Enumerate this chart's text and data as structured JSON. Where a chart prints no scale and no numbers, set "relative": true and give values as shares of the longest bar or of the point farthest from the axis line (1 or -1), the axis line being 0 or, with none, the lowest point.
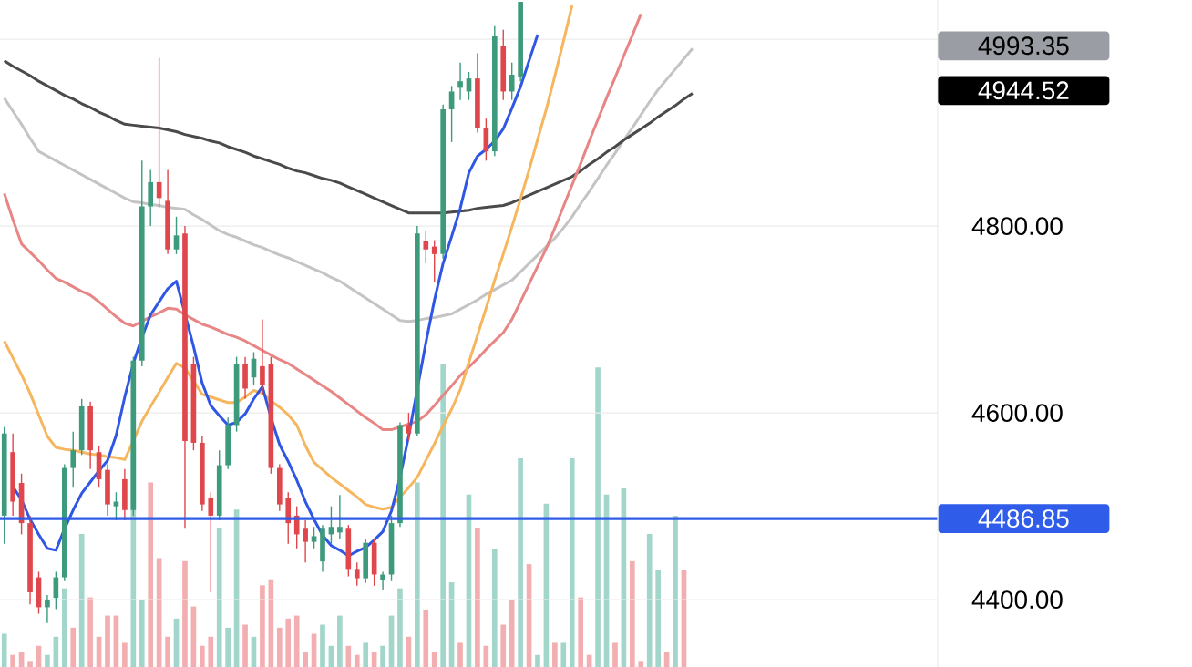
{
  "chart_data": [
    {
      "type": "candlestick",
      "categories": [
        null,
        null,
        null,
        null,
        null,
        null,
        null,
        null,
        null,
        null,
        null,
        null,
        null,
        null,
        null,
        null,
        null,
        null,
        null,
        null,
        null,
        null,
        null,
        null,
        null,
        null,
        null,
        null,
        null,
        null,
        null,
        null,
        null,
        null,
        null,
        null,
        null,
        null,
        null,
        null,
        null,
        null,
        null,
        null,
        null,
        null,
        null,
        null,
        null,
        null,
        null,
        null,
        null,
        null,
        null,
        null,
        null,
        null,
        null,
        null,
        null,
        null,
        null,
        null,
        null,
        null,
        null,
        null,
        null,
        null,
        null,
        null,
        null,
        null,
        null,
        null,
        null,
        null,
        null,
        null,
        null,
        null,
        null,
        null,
        null,
        null,
        null,
        null,
        null,
        null,
        null,
        null,
        null,
        null,
        null,
        null,
        null,
        null,
        null,
        null,
        null,
        null,
        null,
        null,
        null,
        null,
        null,
        null,
        null
      ],
      "ohlc": [
        [
          4490,
          4585,
          4460,
          4578
        ],
        [
          4558,
          4578,
          4490,
          4505
        ],
        [
          4525,
          4535,
          4470,
          4482
        ],
        [
          4482,
          4490,
          4395,
          4408
        ],
        [
          4424,
          4430,
          4385,
          4392
        ],
        [
          4392,
          4405,
          4375,
          4400
        ],
        [
          4402,
          4430,
          4390,
          4424
        ],
        [
          4424,
          4545,
          4420,
          4541
        ],
        [
          4541,
          4580,
          4520,
          4560
        ],
        [
          4560,
          4615,
          4555,
          4607
        ],
        [
          4607,
          4612,
          4540,
          4560
        ],
        [
          4558,
          4565,
          4520,
          4529
        ],
        [
          4539,
          4545,
          4490,
          4502
        ],
        [
          4500,
          4515,
          4485,
          4505
        ],
        [
          4529,
          4540,
          4485,
          4496
        ],
        [
          4496,
          4660,
          4490,
          4656
        ],
        [
          4656,
          4870,
          4650,
          4821
        ],
        [
          4821,
          4860,
          4800,
          4847
        ],
        [
          4847,
          4980,
          4820,
          4830
        ],
        [
          4827,
          4860,
          4770,
          4775
        ],
        [
          4775,
          4810,
          4770,
          4790
        ],
        [
          4792,
          4800,
          4476,
          4570
        ],
        [
          4652,
          4660,
          4560,
          4568
        ],
        [
          4568,
          4575,
          4495,
          4502
        ],
        [
          4509,
          4515,
          4408,
          4490
        ],
        [
          4490,
          4560,
          4485,
          4544
        ],
        [
          4544,
          4595,
          4540,
          4587
        ],
        [
          4587,
          4660,
          4580,
          4652
        ],
        [
          4652,
          4660,
          4615,
          4626
        ],
        [
          4638,
          4665,
          4630,
          4658
        ],
        [
          4650,
          4700,
          4620,
          4630
        ],
        [
          4652,
          4660,
          4535,
          4541
        ],
        [
          4541,
          4545,
          4495,
          4502
        ],
        [
          4509,
          4515,
          4460,
          4482
        ],
        [
          4490,
          4500,
          4455,
          4470
        ],
        [
          4476,
          4485,
          4440,
          4462
        ],
        [
          4462,
          4478,
          4455,
          4468
        ],
        [
          4441,
          4480,
          4430,
          4476
        ],
        [
          4470,
          4500,
          4460,
          4478
        ],
        [
          4472,
          4512,
          4465,
          4478
        ],
        [
          4476,
          4480,
          4425,
          4433
        ],
        [
          4433,
          4440,
          4415,
          4423
        ],
        [
          4423,
          4465,
          4418,
          4461
        ],
        [
          4461,
          4465,
          4415,
          4427
        ],
        [
          4421,
          4430,
          4410,
          4427
        ],
        [
          4427,
          4490,
          4420,
          4482
        ],
        [
          4482,
          4590,
          4478,
          4587
        ],
        [
          4587,
          4600,
          4570,
          4578
        ],
        [
          4578,
          4800,
          4575,
          4792
        ],
        [
          4784,
          4795,
          4760,
          4775
        ],
        [
          4778,
          4785,
          4740,
          4770
        ],
        [
          4770,
          4930,
          4765,
          4925
        ],
        [
          4925,
          4950,
          4890,
          4944
        ],
        [
          4948,
          4975,
          4935,
          4955
        ],
        [
          4944,
          4965,
          4935,
          4958
        ],
        [
          4958,
          4985,
          4900,
          4905
        ],
        [
          4905,
          4915,
          4870,
          4880
        ],
        [
          4880,
          5015,
          4875,
          5003
        ],
        [
          4993,
          5010,
          4935,
          4944
        ],
        [
          4944,
          4975,
          4935,
          4962
        ],
        [
          4960,
          5040,
          4955,
          5040
        ],
        null,
        null,
        null,
        null,
        null,
        null,
        null,
        null,
        null,
        null,
        null,
        null,
        null,
        null,
        null,
        null,
        null,
        null,
        null,
        null,
        null,
        null,
        null,
        null,
        null,
        null,
        null,
        null,
        null,
        null,
        null,
        null,
        null,
        null,
        null,
        null,
        null,
        null,
        null,
        null,
        null,
        null,
        null,
        null,
        null,
        null,
        null,
        null
      ],
      "colors": [
        "#3d9a7c",
        "#e0474c",
        "#e0474c",
        "#e0474c",
        "#e0474c",
        "#3d9a7c",
        "#3d9a7c",
        "#3d9a7c",
        "#3d9a7c",
        "#3d9a7c",
        "#e0474c",
        "#e0474c",
        "#e0474c",
        "#3d9a7c",
        "#e0474c",
        "#3d9a7c",
        "#3d9a7c",
        "#3d9a7c",
        "#e0474c",
        "#e0474c",
        "#3d9a7c",
        "#e0474c",
        "#e0474c",
        "#e0474c",
        "#e0474c",
        "#3d9a7c",
        "#3d9a7c",
        "#3d9a7c",
        "#e0474c",
        "#3d9a7c",
        "#e0474c",
        "#e0474c",
        "#e0474c",
        "#e0474c",
        "#e0474c",
        "#e0474c",
        "#3d9a7c",
        "#3d9a7c",
        "#3d9a7c",
        "#3d9a7c",
        "#e0474c",
        "#e0474c",
        "#3d9a7c",
        "#e0474c",
        "#3d9a7c",
        "#3d9a7c",
        "#3d9a7c",
        "#e0474c",
        "#3d9a7c",
        "#e0474c",
        "#e0474c",
        "#3d9a7c",
        "#3d9a7c",
        "#3d9a7c",
        "#3d9a7c",
        "#e0474c",
        "#e0474c",
        "#3d9a7c",
        "#e0474c",
        "#3d9a7c",
        "#3d9a7c",
        null,
        null,
        null,
        null,
        null,
        null,
        null,
        null,
        null,
        null,
        null,
        null,
        null,
        null,
        null,
        null,
        null,
        null,
        null,
        null,
        null,
        null,
        null,
        null,
        null,
        null,
        null,
        null,
        null,
        null,
        null,
        null,
        null,
        null,
        null,
        null,
        null,
        null,
        null,
        null,
        null,
        null,
        null,
        null,
        null,
        null,
        null,
        null
      ],
      "series": [
        {
          "type": "line",
          "color": "#c4c4c4",
          "values": [
            4937,
            4923,
            4909,
            4894,
            4880,
            4875,
            4870,
            4865,
            4860,
            4855,
            4850,
            4845,
            4840,
            4835,
            4830,
            4826,
            4825,
            4823,
            4822,
            4820,
            4819,
            4818,
            4812,
            4807,
            4801,
            4795,
            4791,
            4788,
            4784,
            4780,
            4777,
            4773,
            4769,
            4766,
            4762,
            4758,
            4754,
            4750,
            4745,
            4741,
            4735,
            4729,
            4723,
            4717,
            4711,
            4705,
            4699,
            4698,
            4699,
            4701,
            4702,
            4704,
            4706,
            4711,
            4716,
            4721,
            4727,
            4732,
            4737,
            4742,
            4751,
            4760,
            4769,
            4778,
            4787,
            4798,
            4810,
            4824,
            4837,
            4851,
            4865,
            4878,
            4892,
            4905,
            4919,
            4933,
            4946,
            4957,
            4968,
            4979,
            4990,
            null,
            null,
            null,
            null,
            null,
            null,
            null,
            null,
            null,
            null,
            null,
            null,
            null,
            null,
            null,
            null,
            null,
            null,
            null,
            null,
            null,
            null,
            null,
            null,
            null,
            null,
            null,
            null
          ]
        },
        {
          "type": "line",
          "color": "#4a4a4a",
          "values": [
            4977,
            4971,
            4966,
            4961,
            4955,
            4950,
            4945,
            4940,
            4936,
            4931,
            4927,
            4922,
            4918,
            4913,
            4909,
            4908,
            4907,
            4906,
            4905,
            4903,
            4901,
            4898,
            4896,
            4894,
            4891,
            4889,
            4885,
            4882,
            4879,
            4875,
            4872,
            4869,
            4866,
            4862,
            4859,
            4857,
            4854,
            4851,
            4849,
            4846,
            4842,
            4838,
            4834,
            4830,
            4826,
            4822,
            4818,
            4814,
            4814,
            4814,
            4814,
            4814,
            4815,
            4816,
            4817,
            4819,
            4820,
            4821,
            4822,
            4825,
            4829,
            4833,
            4837,
            4841,
            4845,
            4849,
            4853,
            4859,
            4866,
            4872,
            4879,
            4885,
            4892,
            4898,
            4904,
            4910,
            4917,
            4923,
            4929,
            4936,
            4942,
            null,
            null,
            null,
            null,
            null,
            null,
            null,
            null,
            null,
            null,
            null,
            null,
            null,
            null,
            null,
            null,
            null,
            null,
            null,
            null,
            null,
            null,
            null,
            null,
            null,
            null,
            null,
            null
          ]
        },
        {
          "type": "line",
          "color": "#e88585",
          "values": [
            4835,
            4807,
            4781,
            4772,
            4763,
            4753,
            4744,
            4740,
            4735,
            4730,
            4726,
            4719,
            4711,
            4703,
            4696,
            4693,
            4698,
            4703,
            4707,
            4712,
            4711,
            4705,
            4700,
            4695,
            4692,
            4688,
            4684,
            4681,
            4677,
            4672,
            4667,
            4662,
            4657,
            4653,
            4647,
            4641,
            4635,
            4629,
            4623,
            4616,
            4609,
            4602,
            4595,
            4589,
            4582,
            4582,
            4585,
            4588,
            4591,
            4598,
            4608,
            4619,
            4629,
            4640,
            4649,
            4658,
            4668,
            4677,
            4686,
            4700,
            4719,
            4738,
            4757,
            4776,
            4798,
            4821,
            4844,
            4867,
            4891,
            4914,
            4937,
            4959,
            4982,
            5004,
            5027,
            null,
            null,
            null,
            null,
            null,
            null,
            null,
            null,
            null,
            null,
            null,
            null,
            null,
            null,
            null,
            null,
            null,
            null,
            null,
            null,
            null,
            null,
            null,
            null,
            null,
            null,
            null,
            null,
            null,
            null,
            null,
            null,
            null,
            null
          ]
        },
        {
          "type": "line",
          "color": "#f5b65e",
          "values": [
            4677,
            4659,
            4641,
            4621,
            4598,
            4575,
            4563,
            4561,
            4560,
            4558,
            4556,
            4555,
            4553,
            4552,
            4550,
            4570,
            4591,
            4607,
            4622,
            4638,
            4653,
            4648,
            4634,
            4620,
            4617,
            4614,
            4611,
            4611,
            4617,
            4624,
            4621,
            4613,
            4606,
            4598,
            4587,
            4565,
            4547,
            4539,
            4531,
            4524,
            4517,
            4510,
            4502,
            4499,
            4497,
            4499,
            4510,
            4520,
            4531,
            4549,
            4567,
            4586,
            4604,
            4625,
            4654,
            4683,
            4712,
            4742,
            4770,
            4799,
            4829,
            4860,
            4893,
            4925,
            4961,
            4998,
            5036,
            null,
            null,
            null,
            null,
            null,
            null,
            null,
            null,
            null,
            null,
            null,
            null,
            null,
            null,
            null,
            null,
            null,
            null,
            null,
            null,
            null,
            null,
            null,
            null,
            null,
            null,
            null,
            null,
            null,
            null,
            null,
            null,
            null,
            null,
            null,
            null,
            null,
            null,
            null,
            null,
            null,
            null
          ]
        },
        {
          "type": "line",
          "color": "#2f57e3",
          "values": [
            null,
            4521,
            4507,
            4486,
            4470,
            4455,
            4453,
            4476,
            4496,
            4514,
            4526,
            4538,
            4549,
            4576,
            4617,
            4653,
            4681,
            4705,
            4719,
            4733,
            4741,
            4706,
            4671,
            4632,
            4608,
            4597,
            4587,
            4590,
            4599,
            4615,
            4628,
            4595,
            4566,
            4548,
            4528,
            4505,
            4486,
            4469,
            4458,
            4453,
            4447,
            4452,
            4456,
            4464,
            4473,
            4495,
            4531,
            4575,
            null,
            4675,
            4721,
            4760,
            4789,
            4819,
            4857,
            4875,
            4882,
            4891,
            4904,
            4926,
            4949,
            4977,
            5005,
            null,
            null,
            null,
            null,
            null,
            null,
            null,
            null,
            null,
            null,
            null,
            null,
            null,
            null,
            null,
            null,
            null,
            null,
            null,
            null,
            null,
            null,
            null,
            null,
            null,
            null,
            null,
            null,
            null,
            null,
            null,
            null,
            null,
            null,
            null,
            null,
            null,
            null,
            null,
            null,
            null,
            null,
            null,
            null,
            null,
            null
          ]
        }
      ],
      "ylim": [
        4328,
        5042
      ],
      "yticks": [
        {
          "value": 4400,
          "label": "4400.00"
        },
        {
          "value": 4600,
          "label": "4600.00"
        },
        {
          "value": 4800,
          "label": "4800.00"
        },
        {
          "value": 5000,
          "label": null
        }
      ],
      "grid": "y",
      "tick_labels": "y",
      "annotations": [
        "4993.35",
        "4944.52"
      ],
      "ref_lines": [
        {
          "axis": "y",
          "value": 4486.85,
          "label": "4486.85",
          "color": "#2f5ce8",
          "line_style": "solid"
        }
      ]
    },
    {
      "type": "bar",
      "relative": true,
      "tick_labels": false,
      "categories": [
        null,
        null,
        null,
        null,
        null,
        null,
        null,
        null,
        null,
        null,
        null,
        null,
        null,
        null,
        null,
        null,
        null,
        null,
        null,
        null,
        null,
        null,
        null,
        null,
        null,
        null,
        null,
        null,
        null,
        null,
        null,
        null,
        null,
        null,
        null,
        null,
        null,
        null,
        null,
        null,
        null,
        null,
        null,
        null,
        null,
        null,
        null,
        null,
        null,
        null,
        null,
        null,
        null,
        null,
        null,
        null,
        null,
        null,
        null,
        null,
        null,
        null,
        null,
        null,
        null,
        null,
        null,
        null,
        null,
        null,
        null,
        null,
        null,
        null,
        null,
        null,
        null,
        null,
        null,
        null
      ],
      "values": [
        0.11,
        0.04,
        0.05,
        0.02,
        0.07,
        0.04,
        0.1,
        0.26,
        0.13,
        0.44,
        0.23,
        0.1,
        0.17,
        0.17,
        0.08,
        0.74,
        0.22,
        0.61,
        0.36,
        0.1,
        0.16,
        0.35,
        0.2,
        0.07,
        0.1,
        0.46,
        0.13,
        0.52,
        0.14,
        0.1,
        0.27,
        0.29,
        0.13,
        0.16,
        0.17,
        0.05,
        0.11,
        0.14,
        0.07,
        0.17,
        0.07,
        0.04,
        0.08,
        0.05,
        0.07,
        0.17,
        0.26,
        0.1,
        0.61,
        0.19,
        0.05,
        1,
        0.28,
        0.08,
        0.57,
        0.46,
        0.07,
        0.39,
        0.14,
        0.22,
        0.69,
        0.34,
        0.04,
        0.54,
        0.08,
        0.08,
        0.69,
        0.23,
        0.04,
        0.99,
        0.57,
        0.08,
        0.59,
        0.35,
        0.02,
        0.44,
        0.32,
        0.05,
        0.5,
        0.32
      ],
      "colors": [
        "#a3d6ca",
        "#f2aeb0",
        "#f2aeb0",
        "#f2aeb0",
        "#f2aeb0",
        "#a3d6ca",
        "#a3d6ca",
        "#a3d6ca",
        "#f2aeb0",
        "#a3d6ca",
        "#f2aeb0",
        "#f2aeb0",
        "#f2aeb0",
        "#f2aeb0",
        "#f2aeb0",
        "#a3d6ca",
        "#a3d6ca",
        "#f2aeb0",
        "#f2aeb0",
        "#f2aeb0",
        "#a3d6ca",
        "#f2aeb0",
        "#f2aeb0",
        "#f2aeb0",
        "#f2aeb0",
        "#a3d6ca",
        "#a3d6ca",
        "#a3d6ca",
        "#f2aeb0",
        "#a3d6ca",
        "#f2aeb0",
        "#f2aeb0",
        "#f2aeb0",
        "#f2aeb0",
        "#f2aeb0",
        "#f2aeb0",
        "#f2aeb0",
        "#a3d6ca",
        "#a3d6ca",
        "#a3d6ca",
        "#f2aeb0",
        "#f2aeb0",
        "#a3d6ca",
        "#f2aeb0",
        "#a3d6ca",
        "#a3d6ca",
        "#a3d6ca",
        "#f2aeb0",
        "#a3d6ca",
        "#f2aeb0",
        "#f2aeb0",
        "#a3d6ca",
        "#a3d6ca",
        "#f2aeb0",
        "#a3d6ca",
        "#f2aeb0",
        "#f2aeb0",
        "#a3d6ca",
        "#f2aeb0",
        "#f2aeb0",
        "#a3d6ca",
        "#f2aeb0",
        "#a3d6ca",
        "#a3d6ca",
        "#f2aeb0",
        "#a3d6ca",
        "#a3d6ca",
        "#f2aeb0",
        "#f2aeb0",
        "#a3d6ca",
        "#a3d6ca",
        "#f2aeb0",
        "#a3d6ca",
        "#f2aeb0",
        "#f2aeb0",
        "#a3d6ca",
        "#a3d6ca",
        "#f2aeb0",
        "#a3d6ca",
        "#f2aeb0"
      ]
    }
  ]
}
